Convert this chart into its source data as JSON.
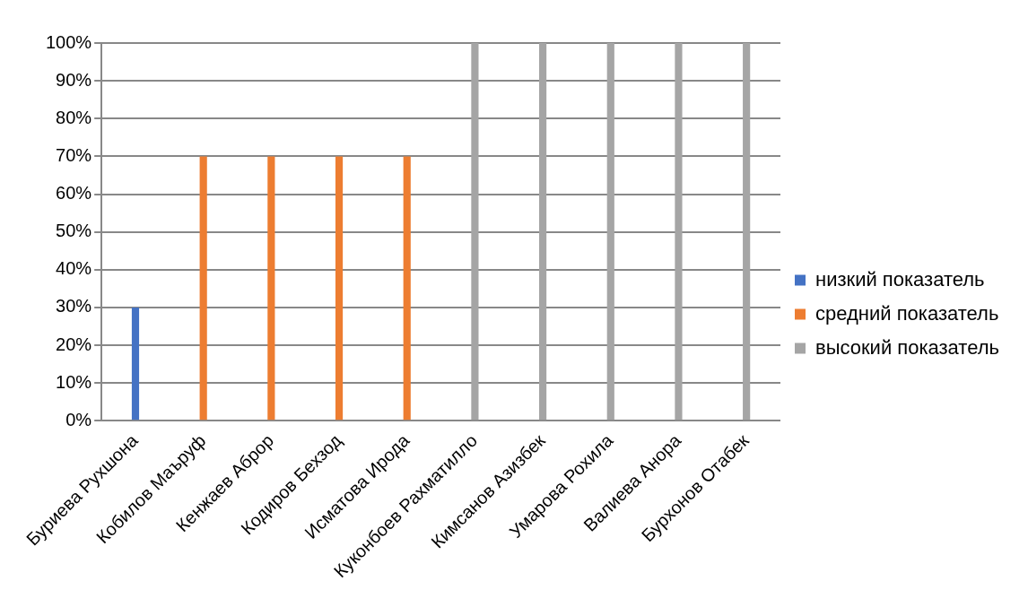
{
  "chart_data": {
    "type": "bar",
    "categories": [
      "Буриева Рухшона",
      "Кобилов Маъруф",
      "Кенжаев Аброр",
      "Кодиров Бехзод",
      "Исматова Ирода",
      "Куконбоев Рахматилло",
      "Кимсанов Азизбек",
      "Умарова Рохила",
      "Валиева Анора",
      "Бурхонов Отабек"
    ],
    "series": [
      {
        "name": "низкий показатель",
        "color": "#4472c4",
        "values": [
          30,
          null,
          null,
          null,
          null,
          null,
          null,
          null,
          null,
          null
        ]
      },
      {
        "name": "средний показатель",
        "color": "#ed7d31",
        "values": [
          null,
          70,
          70,
          70,
          70,
          null,
          null,
          null,
          null,
          null
        ]
      },
      {
        "name": "высокий показатель",
        "color": "#a5a5a5",
        "values": [
          null,
          null,
          null,
          null,
          null,
          100,
          100,
          100,
          100,
          100
        ]
      }
    ],
    "ylim": [
      0,
      100
    ],
    "yticks": [
      {
        "value": 0,
        "label": "0%"
      },
      {
        "value": 10,
        "label": "10%"
      },
      {
        "value": 20,
        "label": "20%"
      },
      {
        "value": 30,
        "label": "30%"
      },
      {
        "value": 40,
        "label": "40%"
      },
      {
        "value": 50,
        "label": "50%"
      },
      {
        "value": 60,
        "label": "60%"
      },
      {
        "value": 70,
        "label": "70%"
      },
      {
        "value": 80,
        "label": "80%"
      },
      {
        "value": 90,
        "label": "90%"
      },
      {
        "value": 100,
        "label": "100%"
      }
    ],
    "grid": "y",
    "legend": "right"
  }
}
